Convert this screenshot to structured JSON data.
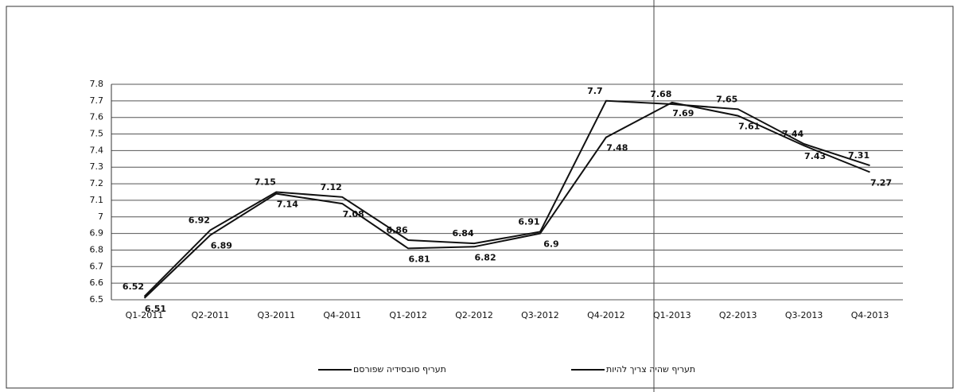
{
  "chart_data": {
    "type": "line",
    "categories": [
      "Q1-2011",
      "Q2-2011",
      "Q3-2011",
      "Q4-2011",
      "Q1-2012",
      "Q2-2012",
      "Q3-2012",
      "Q4-2012",
      "Q1-2013",
      "Q2-2013",
      "Q3-2013",
      "Q4-2013"
    ],
    "series": [
      {
        "name": "תעריף סובסידיה שפורסם",
        "color": "#111111",
        "values": [
          6.52,
          6.92,
          7.15,
          7.12,
          6.86,
          6.84,
          6.91,
          7.7,
          7.68,
          7.65,
          7.44,
          7.31
        ]
      },
      {
        "name": "תעריף שהיה צריך להיות",
        "color": "#111111",
        "values": [
          6.51,
          6.89,
          7.14,
          7.08,
          6.81,
          6.82,
          6.9,
          7.48,
          7.69,
          7.61,
          7.43,
          7.27
        ]
      }
    ],
    "ylim": [
      6.5,
      7.8
    ],
    "yticks": [
      6.5,
      6.6,
      6.7,
      6.8,
      6.9,
      7,
      7.1,
      7.2,
      7.3,
      7.4,
      7.5,
      7.6,
      7.7,
      7.8
    ],
    "grid": true,
    "legend": "bottom"
  }
}
